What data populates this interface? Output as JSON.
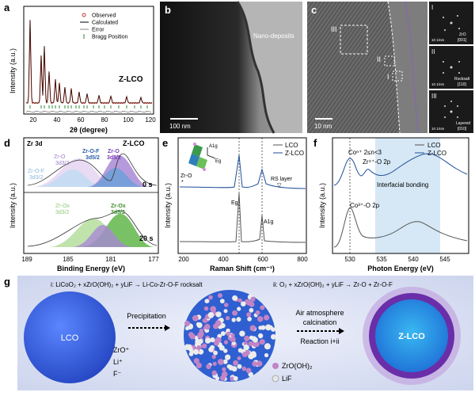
{
  "panels": {
    "a": {
      "letter": "a",
      "ylabel": "Intensity (a.u.)",
      "xlabel": "2θ (degree)",
      "sample": "Z-LCO",
      "legend": [
        "Observed",
        "Calculated",
        "Error",
        "Bragg Position"
      ],
      "xticks": [
        "20",
        "40",
        "60",
        "80",
        "100",
        "120"
      ]
    },
    "b": {
      "letter": "b",
      "annotation": "Nano-deposits",
      "scalebar": "100 nm"
    },
    "c": {
      "letter": "c",
      "scalebar": "10 nm",
      "regions": [
        "I",
        "II",
        "III"
      ],
      "insets": [
        {
          "id": "I",
          "scale": "10 1/nm",
          "label_top": "ZrO",
          "label_bot": "[001]"
        },
        {
          "id": "II",
          "scale": "10 1/nm",
          "label_top": "Rocksalt",
          "label_bot": "[110]"
        },
        {
          "id": "III",
          "scale": "10 1/nm",
          "label_top": "Layered",
          "label_bot": "[010]"
        }
      ]
    },
    "d": {
      "letter": "d",
      "title": "Zr 3d",
      "sample": "Z-LCO",
      "ylabel": "Intensity (a.u.)",
      "xlabel": "Binding Energy (eV)",
      "xticks": [
        "189",
        "185",
        "181",
        "177"
      ],
      "time_top": "0 s",
      "time_bot": "20 s",
      "peaks_top": [
        "Zr-O-F",
        "3d3/2",
        "Zr-O",
        "3d5/2",
        "Zr-O-F",
        "3d5/2",
        "Zr-O",
        "3d3/2"
      ],
      "peaks_bot": [
        "Zr-Ox",
        "3d3/2",
        "Zr-Ox",
        "3d5/2"
      ]
    },
    "e": {
      "letter": "e",
      "ylabel": "Intensity (a.u.)",
      "xlabel": "Raman Shift (cm⁻¹)",
      "xticks": [
        "200",
        "400",
        "600",
        "800"
      ],
      "legend": [
        "LCO",
        "Z-LCO"
      ],
      "annotations": [
        "Zr-O",
        "RS layer",
        "Eg",
        "A1g",
        "A1g",
        "Eg"
      ]
    },
    "f": {
      "letter": "f",
      "ylabel": "Intensity (a.u.)",
      "xlabel": "Photon Energy (eV)",
      "xticks": [
        "530",
        "535",
        "540",
        "545"
      ],
      "legend": [
        "LCO",
        "Z-LCO"
      ],
      "annotations": [
        "Coⁿ⁺ 2≤n<3",
        "Zr⁴⁺-O 2p",
        "Interfacial bonding",
        "Co³⁺-O 2p"
      ]
    },
    "g": {
      "letter": "g",
      "eq_i": "i: LiCoO₂ + xZrO(OH)₂ + yLiF → Li-Co-Zr-O-F rocksalt",
      "eq_ii": "ii: O₂ + xZrO(OH)₂ + yLiF → Zr-O + Zr-O-F",
      "core_label": "LCO",
      "ions": [
        "ZrO⁺",
        "Li⁺",
        "F⁻"
      ],
      "step1": "Precipitation",
      "step2a": "Air atmosphere",
      "step2b": "calcination",
      "step2c": "Reaction i+ii",
      "legend": [
        "ZrO(OH)₂",
        "LiF"
      ],
      "product_label": "Z-LCO"
    }
  },
  "colors": {
    "red_marker": "#c0392b",
    "lco_line": "#555555",
    "zlco_line": "#1f4e9a",
    "bragg": "#2e8b3a",
    "tem_bg": "#202020",
    "shade": "#d6e8f5",
    "purple": "#7a3fb0",
    "sphere_blue": "#2f5fd0"
  }
}
